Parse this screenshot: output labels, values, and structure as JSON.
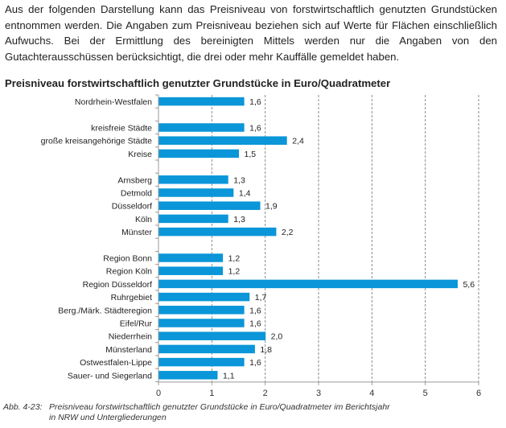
{
  "intro_text": "Aus der folgenden Darstellung kann das Preisniveau von forstwirtschaftlich genutzten Grundstücken entnommen werden. Die Angaben zum Preisniveau beziehen sich auf Werte für Flächen einschließlich Aufwuchs. Bei der Ermittlung des bereinigten Mittels werden nur die Angaben von den Gutachterausschüssen berücksichtigt, die drei oder mehr Kauffälle gemeldet haben.",
  "caption": {
    "number": "Abb. 4-23:",
    "line1": "Preisniveau forstwirtschaftlich genutzter Grundstücke in Euro/Quadratmeter im Berichtsjahr",
    "line2": "in NRW und Untergliederungen"
  },
  "chart_data": {
    "type": "bar",
    "orientation": "horizontal",
    "title": "Preisniveau forstwirtschaftlich genutzter Grundstücke in Euro/Quadratmeter",
    "xlabel": "",
    "ylabel": "",
    "xlim": [
      0,
      6
    ],
    "xticks": [
      0,
      1,
      2,
      3,
      4,
      5,
      6
    ],
    "grid": "vertical dashed",
    "bar_color": "#0a96d8",
    "categories": [
      "Nordrhein-Westfalen",
      "",
      "kreisfreie Städte",
      "große kreisangehörige Städte",
      "Kreise",
      "",
      "Arnsberg",
      "Detmold",
      "Düsseldorf",
      "Köln",
      "Münster",
      "",
      "Region Bonn",
      "Region Köln",
      "Region Düsseldorf",
      "Ruhrgebiet",
      "Berg./Märk. Städteregion",
      "Eifel/Rur",
      "Niederrhein",
      "Münsterland",
      "Ostwestfalen-Lippe",
      "Sauer- und Siegerland"
    ],
    "values": [
      1.6,
      null,
      1.6,
      2.4,
      1.5,
      null,
      1.3,
      1.4,
      1.9,
      1.3,
      2.2,
      null,
      1.2,
      1.2,
      5.6,
      1.7,
      1.6,
      1.6,
      2.0,
      1.8,
      1.6,
      1.1
    ],
    "value_labels": [
      "1,6",
      "",
      "1,6",
      "2,4",
      "1,5",
      "",
      "1,3",
      "1,4",
      "1,9",
      "1,3",
      "2,2",
      "",
      "1,2",
      "1,2",
      "5,6",
      "1,7",
      "1,6",
      "1,6",
      "2,0",
      "1,8",
      "1,6",
      "1,1"
    ]
  }
}
